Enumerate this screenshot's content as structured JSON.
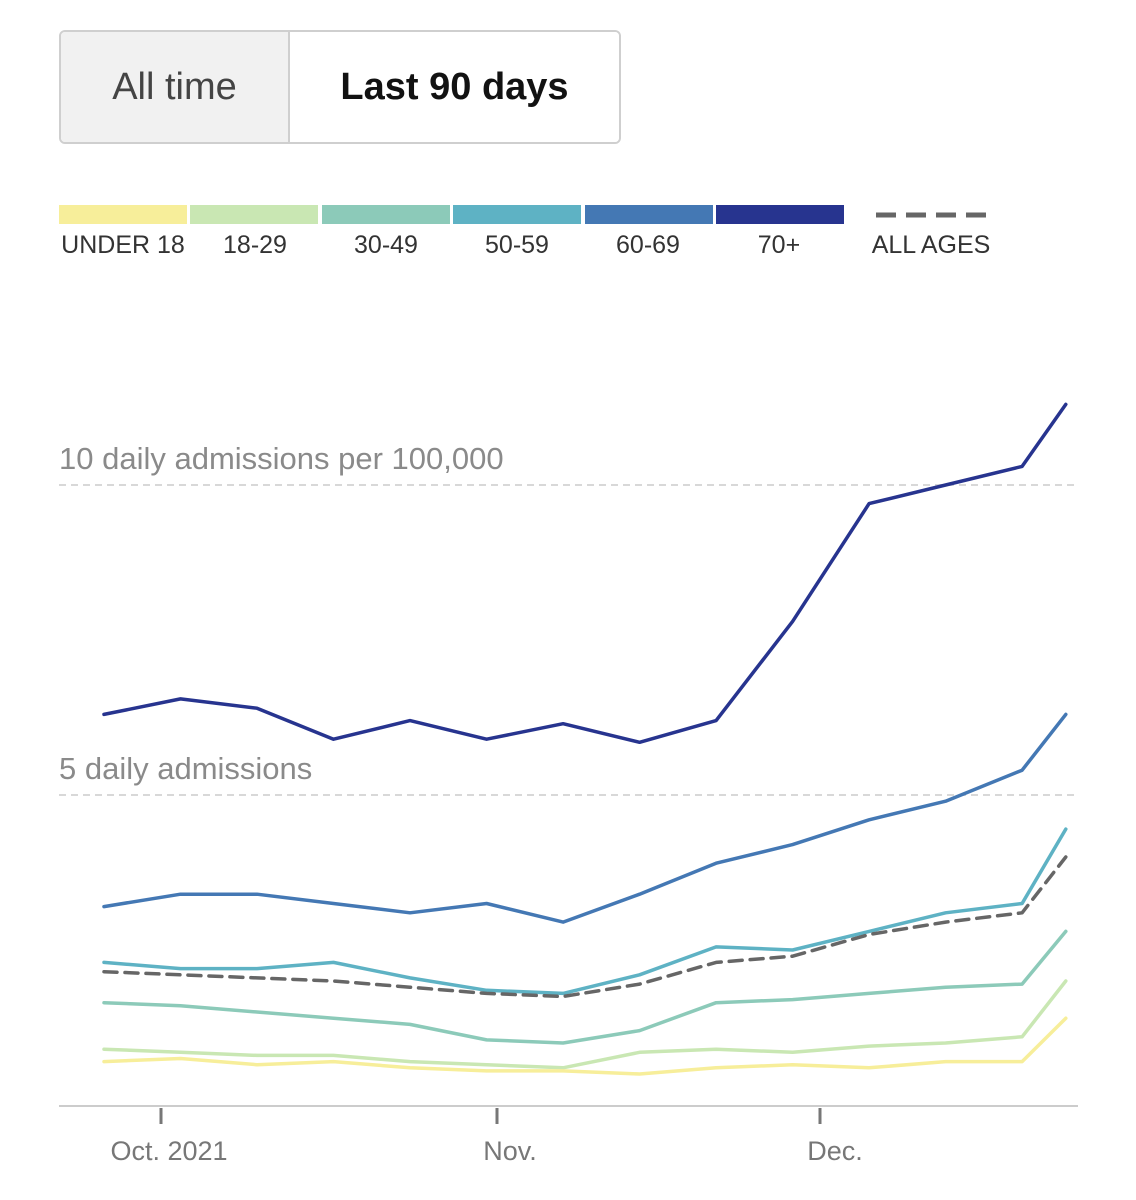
{
  "toggle": {
    "all_time_label": "All time",
    "last_90_label": "Last 90 days"
  },
  "chart_data": {
    "type": "line",
    "xlabel": "",
    "ylabel": "",
    "ylim": [
      0,
      13.5
    ],
    "x_tick_labels": [
      "Oct. 2021",
      "Nov.",
      "Dec."
    ],
    "gridlines": [
      {
        "value": 10,
        "label": "10 daily admissions per 100,000"
      },
      {
        "value": 5,
        "label": "5 daily admissions"
      }
    ],
    "legend": [
      {
        "name": "UNDER 18",
        "color": "#f7ee9a"
      },
      {
        "name": "18-29",
        "color": "#c9e7b3"
      },
      {
        "name": "30-49",
        "color": "#8ccab9"
      },
      {
        "name": "50-59",
        "color": "#5eb2c4"
      },
      {
        "name": "60-69",
        "color": "#4478b4"
      },
      {
        "name": "70+",
        "color": "#27348f"
      },
      {
        "name": "ALL AGES",
        "color": "#666666",
        "dashed": true
      }
    ],
    "x_dates": [
      "2021-09-27",
      "2021-10-04",
      "2021-10-11",
      "2021-10-18",
      "2021-10-25",
      "2021-11-01",
      "2021-11-08",
      "2021-11-15",
      "2021-11-22",
      "2021-11-29",
      "2021-12-06",
      "2021-12-13",
      "2021-12-20",
      "2021-12-24"
    ],
    "series": [
      {
        "name": "70+",
        "color": "#27348f",
        "dashed": false,
        "values": [
          6.3,
          6.55,
          6.4,
          5.9,
          6.2,
          5.9,
          6.15,
          5.85,
          6.2,
          7.8,
          9.7,
          10.0,
          10.3,
          11.3
        ]
      },
      {
        "name": "60-69",
        "color": "#4478b4",
        "dashed": false,
        "values": [
          3.2,
          3.4,
          3.4,
          3.25,
          3.1,
          3.25,
          2.95,
          3.4,
          3.9,
          4.2,
          4.6,
          4.9,
          5.4,
          6.3
        ]
      },
      {
        "name": "50-59",
        "color": "#5eb2c4",
        "dashed": false,
        "values": [
          2.3,
          2.2,
          2.2,
          2.3,
          2.05,
          1.85,
          1.8,
          2.1,
          2.55,
          2.5,
          2.8,
          3.1,
          3.25,
          4.45
        ]
      },
      {
        "name": "ALL AGES",
        "color": "#666666",
        "dashed": true,
        "values": [
          2.15,
          2.1,
          2.05,
          2.0,
          1.9,
          1.8,
          1.75,
          1.95,
          2.3,
          2.4,
          2.75,
          2.95,
          3.1,
          4.0
        ]
      },
      {
        "name": "30-49",
        "color": "#8ccab9",
        "dashed": false,
        "values": [
          1.65,
          1.6,
          1.5,
          1.4,
          1.3,
          1.05,
          1.0,
          1.2,
          1.65,
          1.7,
          1.8,
          1.9,
          1.95,
          2.8
        ]
      },
      {
        "name": "18-29",
        "color": "#c9e7b3",
        "dashed": false,
        "values": [
          0.9,
          0.85,
          0.8,
          0.8,
          0.7,
          0.65,
          0.6,
          0.85,
          0.9,
          0.85,
          0.95,
          1.0,
          1.1,
          2.0
        ]
      },
      {
        "name": "UNDER 18",
        "color": "#f7ee9a",
        "dashed": false,
        "values": [
          0.7,
          0.75,
          0.65,
          0.7,
          0.6,
          0.55,
          0.55,
          0.5,
          0.6,
          0.65,
          0.6,
          0.7,
          0.7,
          1.4
        ]
      }
    ]
  }
}
